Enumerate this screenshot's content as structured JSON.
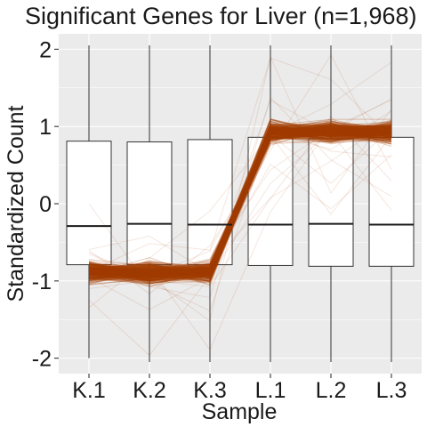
{
  "chart_data": {
    "type": "box",
    "title": "Significant Genes for Liver (n=1,968)",
    "xlabel": "Sample",
    "ylabel": "Standardized Count",
    "categories": [
      "K.1",
      "K.2",
      "K.3",
      "L.1",
      "L.2",
      "L.3"
    ],
    "ylim": [
      -2.2,
      2.2
    ],
    "yticks": [
      -2,
      -1,
      0,
      1,
      2
    ],
    "ytick_labels": [
      "-2",
      "-1",
      "0",
      "1",
      "2"
    ],
    "grid": true,
    "boxes": [
      {
        "name": "K.1",
        "whisker_low": -2.0,
        "q1": -0.79,
        "median": -0.29,
        "q3": 0.81,
        "whisker_high": 2.05
      },
      {
        "name": "K.2",
        "whisker_low": -2.05,
        "q1": -0.79,
        "median": -0.26,
        "q3": 0.8,
        "whisker_high": 2.05
      },
      {
        "name": "K.3",
        "whisker_low": -2.05,
        "q1": -0.79,
        "median": -0.27,
        "q3": 0.83,
        "whisker_high": 2.05
      },
      {
        "name": "L.1",
        "whisker_low": -2.05,
        "q1": -0.8,
        "median": -0.27,
        "q3": 0.86,
        "whisker_high": 2.05
      },
      {
        "name": "L.2",
        "whisker_low": -2.05,
        "q1": -0.81,
        "median": -0.26,
        "q3": 0.84,
        "whisker_high": 2.05
      },
      {
        "name": "L.3",
        "whisker_low": -2.05,
        "q1": -0.81,
        "median": -0.27,
        "q3": 0.86,
        "whisker_high": 2.05
      }
    ],
    "gene_profile_mean": [
      -0.88,
      -0.9,
      -0.89,
      0.93,
      0.94,
      0.93
    ],
    "gene_profile_spread": 0.09,
    "colors": {
      "lines": "#a33d00",
      "panel": "#ebebeb",
      "grid": "#ffffff",
      "box_fill": "#ffffff",
      "box_stroke": "#333333"
    }
  }
}
